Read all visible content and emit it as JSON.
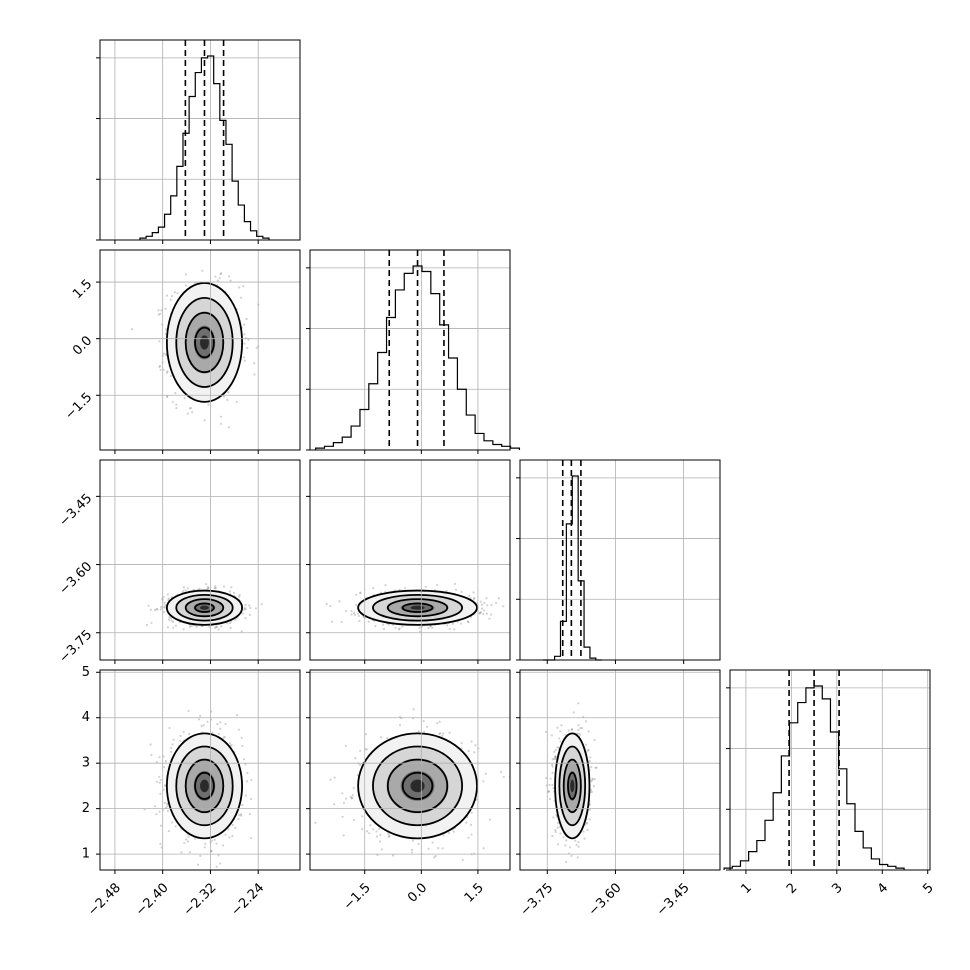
{
  "chart_data": {
    "type": "corner",
    "parameters": [
      {
        "mean": -2.33,
        "sd": 0.03,
        "range": [
          -2.505,
          -2.17
        ],
        "ticks": [
          -2.48,
          -2.4,
          -2.32,
          -2.24
        ],
        "tick_labels": [
          "−2.48",
          "−2.40",
          "−2.32",
          "−2.24"
        ],
        "quantiles": [
          -2.362,
          -2.33,
          -2.298
        ]
      },
      {
        "mean": -0.1,
        "sd": 0.75,
        "range": [
          -2.95,
          2.35
        ],
        "ticks": [
          -1.5,
          0.0,
          1.5
        ],
        "tick_labels": [
          "−1.5",
          "0.0",
          "1.5"
        ],
        "quantiles": [
          -0.85,
          -0.1,
          0.6
        ]
      },
      {
        "mean": -3.695,
        "sd": 0.018,
        "range": [
          -3.81,
          -3.37
        ],
        "ticks": [
          -3.75,
          -3.6,
          -3.45
        ],
        "tick_labels": [
          "−3.75",
          "−3.60",
          "−3.45"
        ],
        "quantiles": [
          -3.716,
          -3.697,
          -3.676
        ]
      },
      {
        "mean": 2.5,
        "sd": 0.55,
        "range": [
          0.65,
          5.05
        ],
        "ticks": [
          1,
          2,
          3,
          4,
          5
        ],
        "tick_labels": [
          "1",
          "2",
          "3",
          "4",
          "5"
        ],
        "quantiles": [
          1.95,
          2.5,
          3.05
        ]
      }
    ],
    "histograms": [
      {
        "counts": [
          0.01,
          0.02,
          0.04,
          0.07,
          0.14,
          0.24,
          0.4,
          0.58,
          0.78,
          0.91,
          0.99,
          1.0,
          0.85,
          0.65,
          0.52,
          0.32,
          0.19,
          0.1,
          0.05,
          0.02,
          0.01
        ]
      },
      {
        "counts": [
          0.01,
          0.02,
          0.04,
          0.07,
          0.13,
          0.22,
          0.36,
          0.53,
          0.72,
          0.87,
          0.96,
          1.0,
          0.97,
          0.85,
          0.68,
          0.5,
          0.33,
          0.19,
          0.09,
          0.05,
          0.03,
          0.02,
          0.01
        ]
      },
      {
        "counts": [
          0.0,
          0.0,
          0.02,
          0.21,
          0.74,
          1.0,
          0.43,
          0.07,
          0.01,
          0.0
        ]
      },
      {
        "counts": [
          0.01,
          0.02,
          0.05,
          0.1,
          0.16,
          0.27,
          0.42,
          0.62,
          0.8,
          0.91,
          0.99,
          1.0,
          0.93,
          0.75,
          0.55,
          0.36,
          0.21,
          0.12,
          0.06,
          0.03,
          0.02,
          0.01
        ]
      }
    ],
    "contour_levels_sigma": [
      0.5,
      1.0,
      1.5,
      2.0
    ],
    "grid": true
  }
}
